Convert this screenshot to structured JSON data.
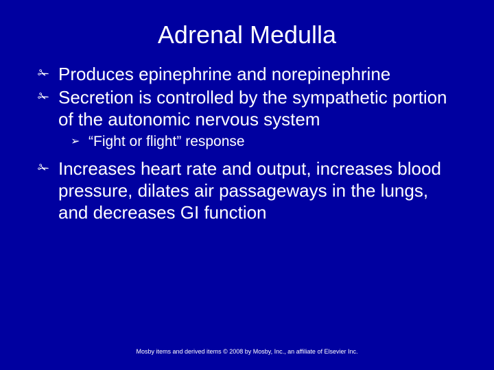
{
  "background_color": "#0000a0",
  "text_color": "#ffffff",
  "title": "Adrenal Medulla",
  "title_fontsize": 36,
  "bullets": [
    {
      "glyph": "✁",
      "text": "Produces epinephrine and norepinephrine"
    },
    {
      "glyph": "✁",
      "text": "Secretion is controlled by the sympathetic portion of the autonomic nervous system"
    }
  ],
  "sub_bullet": {
    "glyph": "➢",
    "text": "“Fight or flight” response"
  },
  "bullet3": {
    "glyph": "✁",
    "text": "Increases heart rate and output, increases blood pressure, dilates air passageways in the lungs, and decreases GI function"
  },
  "footer": "Mosby items and derived items © 2008 by Mosby, Inc., an affiliate of Elsevier Inc.",
  "body_fontsize": 26,
  "sub_fontsize": 21,
  "footer_fontsize": 9
}
